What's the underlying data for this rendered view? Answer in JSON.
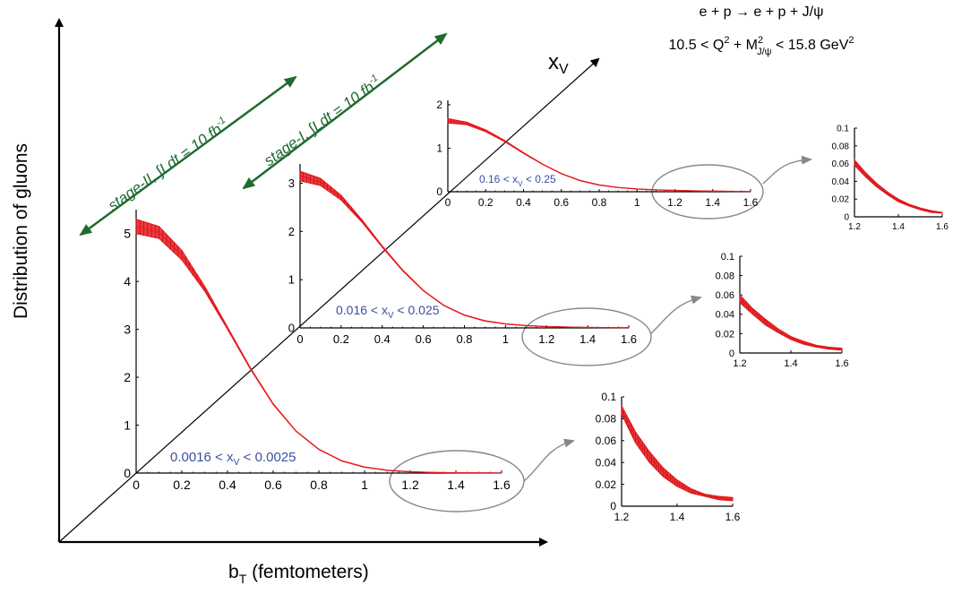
{
  "figure": {
    "ylabel": "Distribution of gluons",
    "xlabel_main": "b",
    "xlabel_sub": "T",
    "xlabel_rest": " (femtometers)",
    "xv_main": "x",
    "xv_sub": "V",
    "process": "e + p → e + p + J/ψ",
    "range_lo": "10.5 < Q",
    "range_sup1": "2",
    "range_mid": " + M",
    "range_sup2": "2",
    "range_sub2": "J/ψ",
    "range_hi": " < 15.8 GeV",
    "range_sup3": "2",
    "stage1": "stage-I, ∫Ldt = 10 fb",
    "stage1_sup": "-1",
    "stage2": "stage-II, ∫Ldt = 10 fb",
    "stage2_sup": "-1",
    "colors": {
      "curve": "#e8191f",
      "band": "#e8191f",
      "label": "#3b4fa0",
      "arrow_green": "#1e6b2e",
      "ellipse": "#888888",
      "axis": "#000000"
    }
  },
  "chart_data": [
    {
      "type": "line",
      "panel": "main-low",
      "label": "0.0016 < x",
      "label_sub": "V",
      "label_rest": " < 0.0025",
      "x_ticks": [
        "0",
        "0.2",
        "0.4",
        "0.6",
        "0.8",
        "1",
        "1.2",
        "1.4",
        "1.6"
      ],
      "y_ticks": [
        "0",
        "1",
        "2",
        "3",
        "4",
        "5"
      ],
      "xlim": [
        0,
        1.6
      ],
      "ylim": [
        0,
        5.5
      ],
      "band": {
        "x": [
          0,
          0.1,
          0.2,
          0.3,
          0.4,
          0.5,
          0.6,
          0.7,
          0.8,
          0.9,
          1.0,
          1.1,
          1.2,
          1.3,
          1.4,
          1.5,
          1.6
        ],
        "upper": [
          5.3,
          5.15,
          4.65,
          3.9,
          3.05,
          2.2,
          1.45,
          0.88,
          0.5,
          0.26,
          0.13,
          0.06,
          0.03,
          0.015,
          0.007,
          0.004,
          0.002
        ],
        "lower": [
          5.0,
          4.9,
          4.45,
          3.8,
          3.0,
          2.17,
          1.43,
          0.87,
          0.49,
          0.25,
          0.12,
          0.055,
          0.025,
          0.012,
          0.005,
          0.003,
          0.001
        ]
      }
    },
    {
      "type": "line",
      "panel": "main-mid",
      "label": "0.016 < x",
      "label_sub": "V",
      "label_rest": " < 0.025",
      "x_ticks": [
        "0",
        "0.2",
        "0.4",
        "0.6",
        "0.8",
        "1",
        "1.2",
        "1.4",
        "1.6"
      ],
      "y_ticks": [
        "0",
        "1",
        "2",
        "3"
      ],
      "xlim": [
        0,
        1.6
      ],
      "ylim": [
        0,
        3.4
      ],
      "band": {
        "x": [
          0,
          0.1,
          0.2,
          0.3,
          0.4,
          0.5,
          0.6,
          0.7,
          0.8,
          0.9,
          1.0,
          1.1,
          1.2,
          1.3,
          1.4,
          1.5,
          1.6
        ],
        "upper": [
          3.25,
          3.1,
          2.75,
          2.25,
          1.7,
          1.2,
          0.78,
          0.47,
          0.27,
          0.15,
          0.085,
          0.05,
          0.03,
          0.02,
          0.012,
          0.008,
          0.005
        ],
        "lower": [
          3.05,
          2.95,
          2.65,
          2.2,
          1.67,
          1.18,
          0.77,
          0.46,
          0.26,
          0.14,
          0.08,
          0.045,
          0.026,
          0.016,
          0.01,
          0.006,
          0.004
        ]
      }
    },
    {
      "type": "line",
      "panel": "main-high",
      "label": "0.16 < x",
      "label_sub": "V",
      "label_rest": " < 0.25",
      "x_ticks": [
        "0",
        "0.2",
        "0.4",
        "0.6",
        "0.8",
        "1",
        "1.2",
        "1.4",
        "1.6"
      ],
      "y_ticks": [
        "0",
        "1",
        "2"
      ],
      "xlim": [
        0,
        1.6
      ],
      "ylim": [
        0,
        2.1
      ],
      "band": {
        "x": [
          0,
          0.1,
          0.2,
          0.3,
          0.4,
          0.5,
          0.6,
          0.7,
          0.8,
          0.9,
          1.0,
          1.1,
          1.2,
          1.3,
          1.4,
          1.5,
          1.6
        ],
        "upper": [
          1.68,
          1.6,
          1.42,
          1.18,
          0.9,
          0.64,
          0.42,
          0.26,
          0.16,
          0.1,
          0.065,
          0.045,
          0.032,
          0.022,
          0.015,
          0.01,
          0.006
        ],
        "lower": [
          1.58,
          1.54,
          1.38,
          1.15,
          0.88,
          0.63,
          0.41,
          0.25,
          0.15,
          0.095,
          0.06,
          0.041,
          0.028,
          0.019,
          0.012,
          0.008,
          0.005
        ]
      }
    },
    {
      "type": "area",
      "panel": "zoom-low",
      "x_ticks": [
        "1.2",
        "1.4",
        "1.6"
      ],
      "y_ticks": [
        "0",
        "0.02",
        "0.04",
        "0.06",
        "0.08",
        "0.1"
      ],
      "xlim": [
        1.2,
        1.6
      ],
      "ylim": [
        0,
        0.1
      ],
      "band": {
        "x": [
          1.2,
          1.25,
          1.3,
          1.35,
          1.4,
          1.45,
          1.5,
          1.55,
          1.6
        ],
        "upper": [
          0.092,
          0.068,
          0.05,
          0.035,
          0.024,
          0.016,
          0.011,
          0.009,
          0.008
        ],
        "lower": [
          0.084,
          0.058,
          0.04,
          0.027,
          0.018,
          0.012,
          0.009,
          0.006,
          0.005
        ]
      }
    },
    {
      "type": "area",
      "panel": "zoom-mid",
      "x_ticks": [
        "1.2",
        "1.4",
        "1.6"
      ],
      "y_ticks": [
        "0",
        "0.02",
        "0.04",
        "0.06",
        "0.08",
        "0.1"
      ],
      "xlim": [
        1.2,
        1.6
      ],
      "ylim": [
        0,
        0.1
      ],
      "band": {
        "x": [
          1.2,
          1.25,
          1.3,
          1.35,
          1.4,
          1.45,
          1.5,
          1.55,
          1.6
        ],
        "upper": [
          0.06,
          0.046,
          0.035,
          0.025,
          0.017,
          0.012,
          0.008,
          0.006,
          0.005
        ],
        "lower": [
          0.052,
          0.04,
          0.029,
          0.021,
          0.014,
          0.009,
          0.006,
          0.004,
          0.003
        ]
      }
    },
    {
      "type": "area",
      "panel": "zoom-high",
      "x_ticks": [
        "1.2",
        "1.4",
        "1.6"
      ],
      "y_ticks": [
        "0",
        "0.02",
        "0.04",
        "0.06",
        "0.08",
        "0.1"
      ],
      "xlim": [
        1.2,
        1.6
      ],
      "ylim": [
        0,
        0.1
      ],
      "band": {
        "x": [
          1.2,
          1.25,
          1.3,
          1.35,
          1.4,
          1.45,
          1.5,
          1.55,
          1.6
        ],
        "upper": [
          0.064,
          0.05,
          0.038,
          0.028,
          0.02,
          0.014,
          0.01,
          0.007,
          0.005
        ],
        "lower": [
          0.058,
          0.045,
          0.034,
          0.025,
          0.017,
          0.012,
          0.008,
          0.005,
          0.004
        ]
      }
    }
  ]
}
